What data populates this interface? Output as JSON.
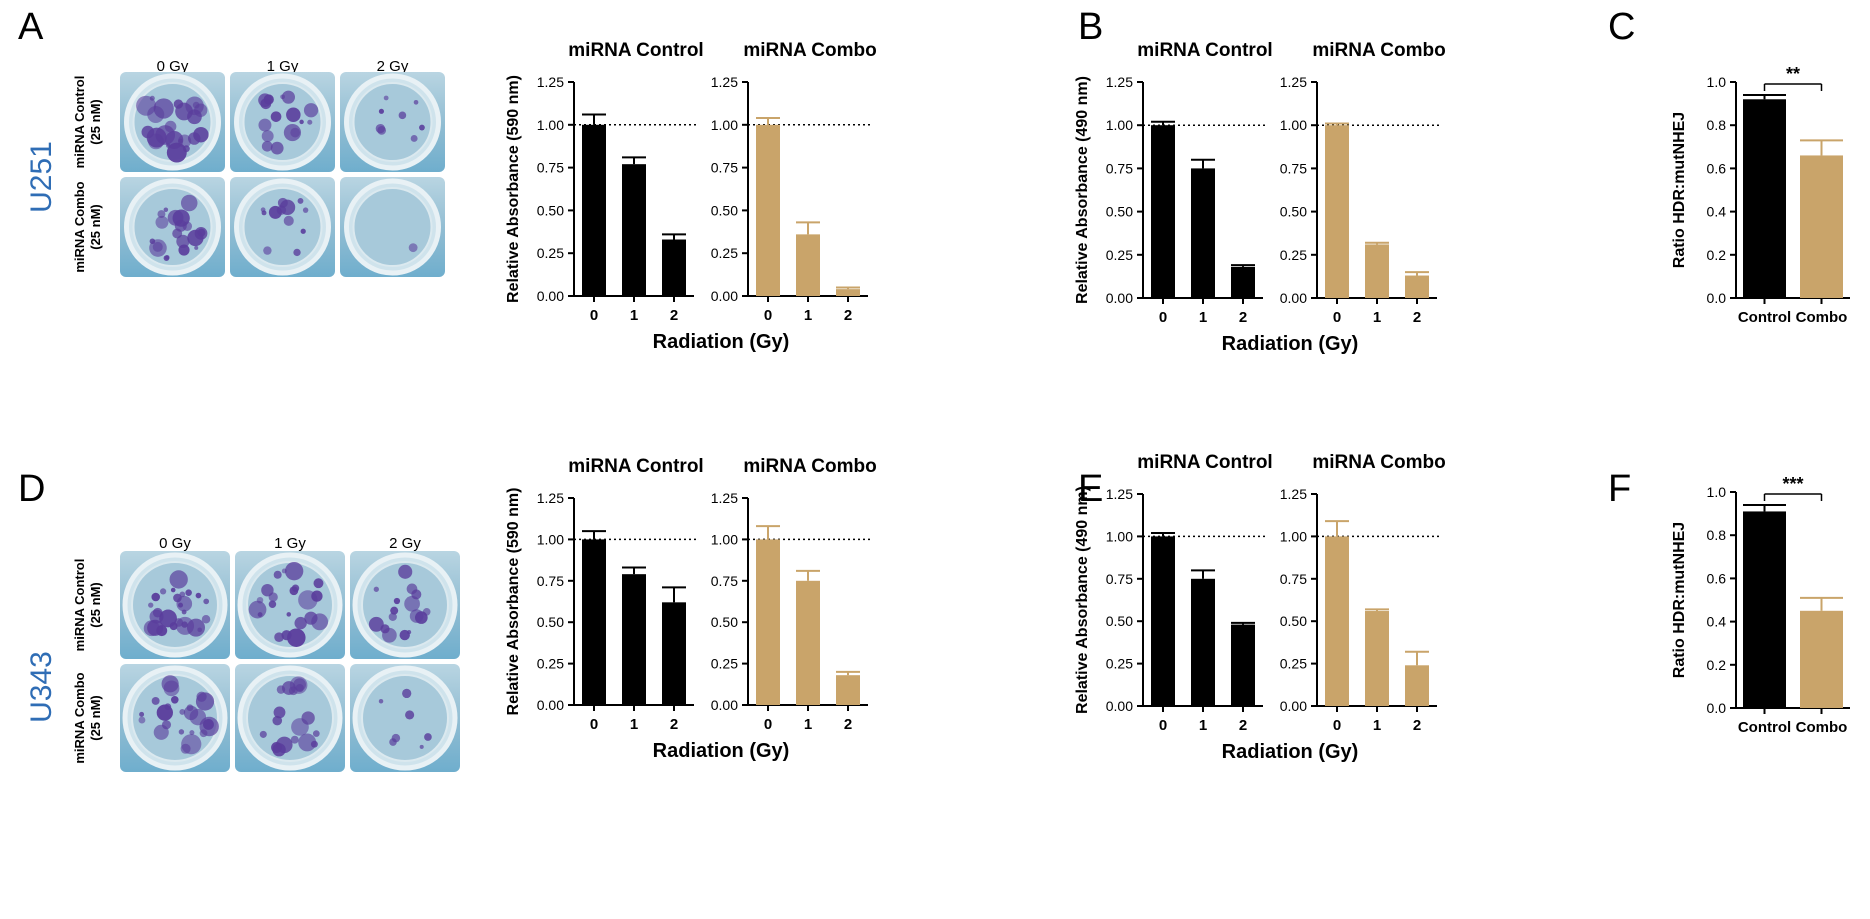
{
  "colors": {
    "control": "#000000",
    "combo": "#c9a46a",
    "cellLine": "#2f6db5",
    "plateBg": "#9cc3d6",
    "stain": "#5a3d9c"
  },
  "panels": [
    {
      "id": "A",
      "letter": "A"
    },
    {
      "id": "B",
      "letter": "B"
    },
    {
      "id": "C",
      "letter": "C"
    },
    {
      "id": "D",
      "letter": "D"
    },
    {
      "id": "E",
      "letter": "E"
    },
    {
      "id": "F",
      "letter": "F"
    }
  ],
  "cellLines": [
    "U251",
    "U343"
  ],
  "plates": {
    "columns": [
      "0 Gy",
      "1 Gy",
      "2 Gy"
    ],
    "rows": [
      {
        "line1": "miRNA Control",
        "line2": "(25 nM)"
      },
      {
        "line1": "miRNA Combo",
        "line2": "(25 nM)"
      }
    ],
    "colonyDensity": [
      [
        0.9,
        0.6,
        0.3
      ],
      [
        0.75,
        0.45,
        0.05
      ],
      [
        1.0,
        0.8,
        0.6
      ],
      [
        0.9,
        0.7,
        0.25
      ]
    ]
  },
  "chart_data": [
    {
      "panel": "A",
      "type": "bar",
      "title": "miRNA Control",
      "categories": [
        "0",
        "1",
        "2"
      ],
      "values": [
        1.0,
        0.77,
        0.33
      ],
      "errors": [
        0.06,
        0.04,
        0.03
      ],
      "ylabel": "Relative Absorbance (590 nm)",
      "xlabel": "Radiation (Gy)",
      "ylim": [
        0,
        1.25
      ],
      "yticks": [
        "0.00",
        "0.25",
        "0.50",
        "0.75",
        "1.00",
        "1.25"
      ],
      "refline": 1.0,
      "color": "control"
    },
    {
      "panel": "A",
      "type": "bar",
      "title": "miRNA Combo",
      "categories": [
        "0",
        "1",
        "2"
      ],
      "values": [
        1.0,
        0.36,
        0.04
      ],
      "errors": [
        0.04,
        0.07,
        0.01
      ],
      "ylabel": "",
      "xlabel": "Radiation (Gy)",
      "ylim": [
        0,
        1.25
      ],
      "yticks": [
        "0.00",
        "0.25",
        "0.50",
        "0.75",
        "1.00",
        "1.25"
      ],
      "refline": 1.0,
      "color": "combo"
    },
    {
      "panel": "B",
      "type": "bar",
      "title": "miRNA Control",
      "categories": [
        "0",
        "1",
        "2"
      ],
      "values": [
        1.0,
        0.75,
        0.18
      ],
      "errors": [
        0.02,
        0.05,
        0.01
      ],
      "ylabel": "Relative Absorbance (490 nm)",
      "xlabel": "Radiation (Gy)",
      "ylim": [
        0,
        1.25
      ],
      "yticks": [
        "0.00",
        "0.25",
        "0.50",
        "0.75",
        "1.00",
        "1.25"
      ],
      "refline": 1.0,
      "color": "control"
    },
    {
      "panel": "B",
      "type": "bar",
      "title": "miRNA Combo",
      "categories": [
        "0",
        "1",
        "2"
      ],
      "values": [
        1.0,
        0.31,
        0.13
      ],
      "errors": [
        0.01,
        0.01,
        0.02
      ],
      "ylabel": "",
      "xlabel": "Radiation (Gy)",
      "ylim": [
        0,
        1.25
      ],
      "yticks": [
        "0.00",
        "0.25",
        "0.50",
        "0.75",
        "1.00",
        "1.25"
      ],
      "refline": 1.0,
      "color": "combo"
    },
    {
      "panel": "C",
      "type": "bar",
      "title": "",
      "categories": [
        "Control",
        "Combo"
      ],
      "values": [
        0.92,
        0.66
      ],
      "errors": [
        0.02,
        0.07
      ],
      "ylabel": "Ratio HDR:mutNHEJ",
      "xlabel": "",
      "ylim": [
        0,
        1.0
      ],
      "yticks": [
        "0.0",
        "0.2",
        "0.4",
        "0.6",
        "0.8",
        "1.0"
      ],
      "significance": "**",
      "colors": [
        "control",
        "combo"
      ]
    },
    {
      "panel": "D",
      "type": "bar",
      "title": "miRNA Control",
      "categories": [
        "0",
        "1",
        "2"
      ],
      "values": [
        1.0,
        0.79,
        0.62
      ],
      "errors": [
        0.05,
        0.04,
        0.09
      ],
      "ylabel": "Relative Absorbance (590 nm)",
      "xlabel": "Radiation (Gy)",
      "ylim": [
        0,
        1.25
      ],
      "yticks": [
        "0.00",
        "0.25",
        "0.50",
        "0.75",
        "1.00",
        "1.25"
      ],
      "refline": 1.0,
      "color": "control"
    },
    {
      "panel": "D",
      "type": "bar",
      "title": "miRNA Combo",
      "categories": [
        "0",
        "1",
        "2"
      ],
      "values": [
        1.0,
        0.75,
        0.18
      ],
      "errors": [
        0.08,
        0.06,
        0.02
      ],
      "ylabel": "",
      "xlabel": "Radiation (Gy)",
      "ylim": [
        0,
        1.25
      ],
      "yticks": [
        "0.00",
        "0.25",
        "0.50",
        "0.75",
        "1.00",
        "1.25"
      ],
      "refline": 1.0,
      "color": "combo"
    },
    {
      "panel": "E",
      "type": "bar",
      "title": "miRNA Control",
      "categories": [
        "0",
        "1",
        "2"
      ],
      "values": [
        1.0,
        0.75,
        0.48
      ],
      "errors": [
        0.02,
        0.05,
        0.01
      ],
      "ylabel": "Relative Absorbance (490 nm)",
      "xlabel": "Radiation (Gy)",
      "ylim": [
        0,
        1.25
      ],
      "yticks": [
        "0.00",
        "0.25",
        "0.50",
        "0.75",
        "1.00",
        "1.25"
      ],
      "refline": 1.0,
      "color": "control"
    },
    {
      "panel": "E",
      "type": "bar",
      "title": "miRNA Combo",
      "categories": [
        "0",
        "1",
        "2"
      ],
      "values": [
        1.0,
        0.56,
        0.24
      ],
      "errors": [
        0.09,
        0.01,
        0.08
      ],
      "ylabel": "",
      "xlabel": "Radiation (Gy)",
      "ylim": [
        0,
        1.25
      ],
      "yticks": [
        "0.00",
        "0.25",
        "0.50",
        "0.75",
        "1.00",
        "1.25"
      ],
      "refline": 1.0,
      "color": "combo"
    },
    {
      "panel": "F",
      "type": "bar",
      "title": "",
      "categories": [
        "Control",
        "Combo"
      ],
      "values": [
        0.91,
        0.45
      ],
      "errors": [
        0.03,
        0.06
      ],
      "ylabel": "Ratio HDR:mutNHEJ",
      "xlabel": "",
      "ylim": [
        0,
        1.0
      ],
      "yticks": [
        "0.0",
        "0.2",
        "0.4",
        "0.6",
        "0.8",
        "1.0"
      ],
      "significance": "***",
      "colors": [
        "control",
        "combo"
      ]
    }
  ]
}
